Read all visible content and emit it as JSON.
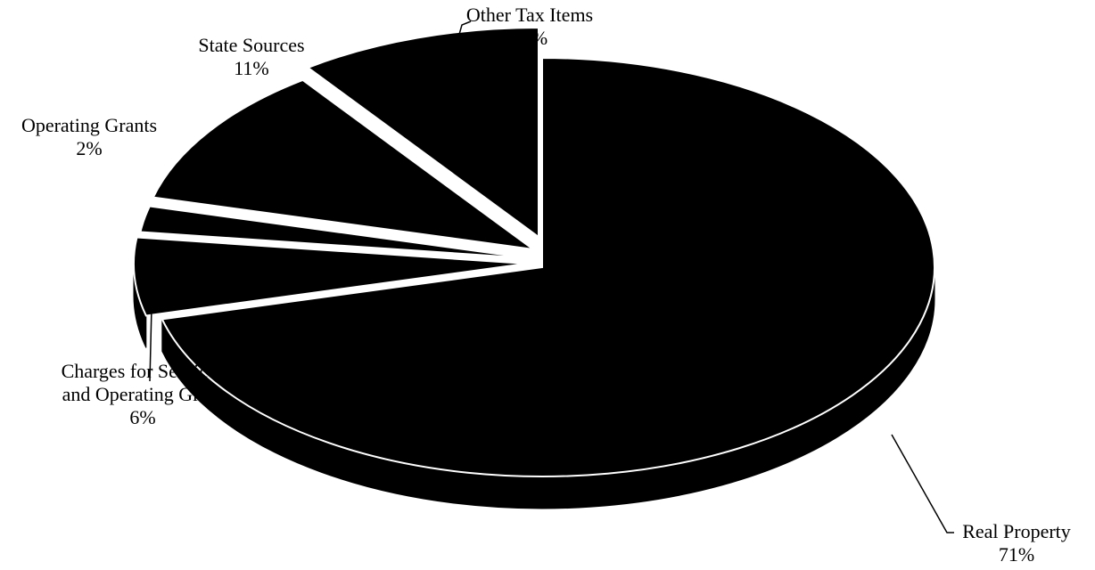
{
  "chart_data": {
    "type": "pie",
    "title": "",
    "slices": [
      {
        "label_lines": [
          "Real Property"
        ],
        "value": 71,
        "value_label": "71%"
      },
      {
        "label_lines": [
          "Charges for Services",
          "and Operating Grant"
        ],
        "value": 6,
        "value_label": "6%"
      },
      {
        "label_lines": [
          "Operating Grants"
        ],
        "value": 2,
        "value_label": "2%"
      },
      {
        "label_lines": [
          "State Sources"
        ],
        "value": 11,
        "value_label": "11%"
      },
      {
        "label_lines": [
          "Other Tax Items"
        ],
        "value": 10,
        "value_label": "10%"
      }
    ],
    "style": {
      "exploded": true,
      "three_d": true,
      "slice_color": "#000000",
      "separator_color": "#ffffff",
      "background": "#ffffff"
    }
  }
}
